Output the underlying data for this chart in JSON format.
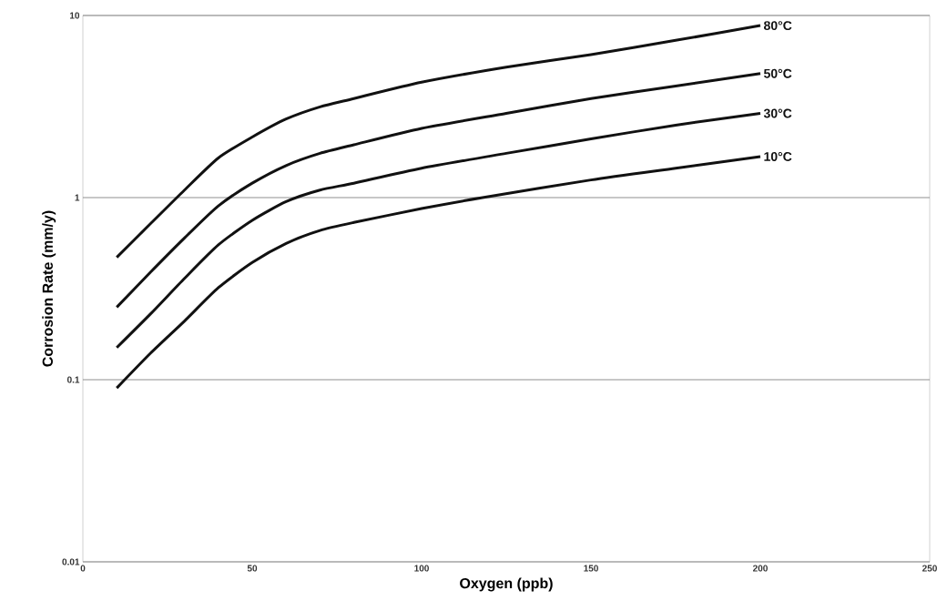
{
  "chart_data": {
    "type": "line",
    "xlabel": "Oxygen (ppb)",
    "ylabel": "Corrosion Rate (mm/y)",
    "log": "y",
    "grid": "y",
    "legend": false,
    "marker": "none",
    "line_style": "solid",
    "xlim": [
      0,
      250
    ],
    "xticks": [
      0,
      50,
      100,
      150,
      200,
      250
    ],
    "ylim": [
      0.01,
      10
    ],
    "yticks": [
      0.01,
      0.1,
      1,
      10
    ],
    "series": [
      {
        "name": "80°C",
        "color": "#111111",
        "x": [
          10,
          20,
          30,
          40,
          50,
          60,
          70,
          80,
          100,
          125,
          150,
          175,
          200
        ],
        "values": [
          0.47,
          0.72,
          1.1,
          1.65,
          2.15,
          2.7,
          3.15,
          3.5,
          4.3,
          5.2,
          6.1,
          7.3,
          8.8
        ]
      },
      {
        "name": "50°C",
        "color": "#111111",
        "x": [
          10,
          20,
          30,
          40,
          50,
          60,
          70,
          80,
          100,
          125,
          150,
          175,
          200
        ],
        "values": [
          0.25,
          0.39,
          0.6,
          0.9,
          1.2,
          1.5,
          1.75,
          1.95,
          2.4,
          2.9,
          3.5,
          4.1,
          4.8
        ]
      },
      {
        "name": "30°C",
        "color": "#111111",
        "x": [
          10,
          20,
          30,
          40,
          50,
          60,
          70,
          80,
          100,
          125,
          150,
          175,
          200
        ],
        "values": [
          0.15,
          0.23,
          0.36,
          0.55,
          0.75,
          0.95,
          1.1,
          1.2,
          1.45,
          1.75,
          2.1,
          2.5,
          2.9
        ]
      },
      {
        "name": "10°C",
        "color": "#111111",
        "x": [
          10,
          20,
          30,
          40,
          50,
          60,
          70,
          80,
          100,
          118,
          150,
          175,
          200
        ],
        "values": [
          0.09,
          0.14,
          0.21,
          0.32,
          0.44,
          0.56,
          0.66,
          0.73,
          0.87,
          1.0,
          1.25,
          1.45,
          1.68
        ]
      }
    ]
  }
}
